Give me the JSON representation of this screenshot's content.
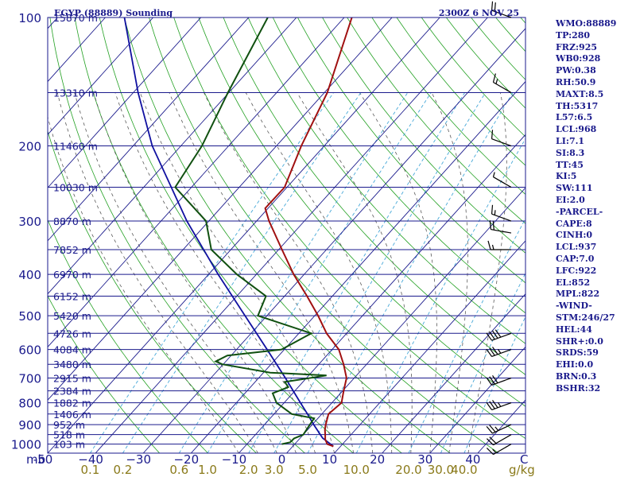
{
  "header": {
    "station": "EGYP (88889) Sounding",
    "time": "2300Z  6 NOV 25"
  },
  "indices": [
    "WMO:88889",
    "TP:280",
    "FRZ:925",
    "WB0:928",
    "PW:0.38",
    "RH:50.9",
    "MAXT:8.5",
    "TH:5317",
    "L57:6.5",
    "LCL:968",
    "LI:7.1",
    "SI:8.3",
    "TT:45",
    "KI:5",
    "SW:111",
    "EI:2.0",
    "-PARCEL-",
    "CAPE:8",
    "CINH:0",
    "LCL:937",
    "CAP:7.0",
    "LFC:922",
    "EL:852",
    "MPL:822",
    "-WIND-",
    "STM:246/27",
    "HEL:44",
    "SHR+:0.0",
    "SRDS:59",
    "EHI:0.0",
    "BRN:0.3",
    "BSHR:32"
  ],
  "chart_data": {
    "type": "skew-t log-p sounding",
    "title": "EGYP (88889) Sounding",
    "pressure_labels": [
      100,
      200,
      300,
      400,
      500,
      600,
      700,
      800,
      900,
      1000
    ],
    "unit_label": "mb",
    "temperature_ticks": [
      -50,
      -40,
      -30,
      -20,
      -10,
      0,
      10,
      20,
      30,
      40
    ],
    "temperature_tick_labels": [
      "-50",
      "−40",
      "−30",
      "−20",
      "−10",
      "0",
      "10",
      "20",
      "30",
      "40"
    ],
    "temperature_unit": "C",
    "temperature_range_c": [
      -50,
      50
    ],
    "pressure_range_mb": [
      100,
      1050
    ],
    "mixing_ratio_labels": [
      "0.1",
      "0.2",
      "0.6",
      "1.0",
      "2.0",
      "3.0",
      "5.0",
      "10.0",
      "20.0",
      "30.0",
      "40.0"
    ],
    "mixing_ratio_unit": "g/kg",
    "mixing_ratio_values": [
      0.1,
      0.2,
      0.6,
      1.0,
      2.0,
      3.0,
      5.0,
      10.0,
      20.0,
      30.0,
      40.0
    ],
    "height_levels": [
      {
        "p": 100,
        "label": "15870 m"
      },
      {
        "p": 150,
        "label": "13310 m"
      },
      {
        "p": 200,
        "label": "11460 m"
      },
      {
        "p": 250,
        "label": "10030 m"
      },
      {
        "p": 300,
        "label": "8870 m"
      },
      {
        "p": 350,
        "label": "7852 m"
      },
      {
        "p": 400,
        "label": "6970 m"
      },
      {
        "p": 450,
        "label": "6152 m"
      },
      {
        "p": 500,
        "label": "5420 m"
      },
      {
        "p": 550,
        "label": "4726 m"
      },
      {
        "p": 600,
        "label": "4084 m"
      },
      {
        "p": 650,
        "label": "3480 m"
      },
      {
        "p": 700,
        "label": "2915 m"
      },
      {
        "p": 750,
        "label": "2384 m"
      },
      {
        "p": 800,
        "label": "1882 m"
      },
      {
        "p": 850,
        "label": "1406 m"
      },
      {
        "p": 900,
        "label": "952 m"
      },
      {
        "p": 950,
        "label": "518 m"
      },
      {
        "p": 1000,
        "label": "103 m"
      }
    ],
    "temperature_profile": [
      {
        "p": 1012,
        "t": 8.5
      },
      {
        "p": 1000,
        "t": 6.8
      },
      {
        "p": 975,
        "t": 5.5
      },
      {
        "p": 950,
        "t": 4.6
      },
      {
        "p": 925,
        "t": 3.6
      },
      {
        "p": 900,
        "t": 2.8
      },
      {
        "p": 850,
        "t": 1.4
      },
      {
        "p": 800,
        "t": 2.0
      },
      {
        "p": 750,
        "t": 0.2
      },
      {
        "p": 700,
        "t": -1.6
      },
      {
        "p": 650,
        "t": -4.8
      },
      {
        "p": 600,
        "t": -8.6
      },
      {
        "p": 550,
        "t": -14.2
      },
      {
        "p": 500,
        "t": -19.3
      },
      {
        "p": 450,
        "t": -25.3
      },
      {
        "p": 400,
        "t": -32.2
      },
      {
        "p": 350,
        "t": -39.3
      },
      {
        "p": 300,
        "t": -47.4
      },
      {
        "p": 280,
        "t": -50.6
      },
      {
        "p": 250,
        "t": -50.5
      },
      {
        "p": 200,
        "t": -54.8
      },
      {
        "p": 150,
        "t": -59.4
      },
      {
        "p": 100,
        "t": -68.4
      }
    ],
    "dewpoint_profile": [
      {
        "p": 1000,
        "t": -2.7
      },
      {
        "p": 990,
        "t": -1.3
      },
      {
        "p": 970,
        "t": -1.2
      },
      {
        "p": 950,
        "t": 0.0
      },
      {
        "p": 900,
        "t": -0.5
      },
      {
        "p": 870,
        "t": -0.8
      },
      {
        "p": 850,
        "t": -6.3
      },
      {
        "p": 800,
        "t": -11.6
      },
      {
        "p": 760,
        "t": -14.2
      },
      {
        "p": 735,
        "t": -12.1
      },
      {
        "p": 715,
        "t": -13.8
      },
      {
        "p": 690,
        "t": -6.3
      },
      {
        "p": 680,
        "t": -18.6
      },
      {
        "p": 650,
        "t": -30.2
      },
      {
        "p": 640,
        "t": -32.1
      },
      {
        "p": 620,
        "t": -30.8
      },
      {
        "p": 600,
        "t": -20.6
      },
      {
        "p": 550,
        "t": -17.4
      },
      {
        "p": 500,
        "t": -31.9
      },
      {
        "p": 450,
        "t": -33.9
      },
      {
        "p": 400,
        "t": -44.1
      },
      {
        "p": 350,
        "t": -54.1
      },
      {
        "p": 300,
        "t": -60.6
      },
      {
        "p": 250,
        "t": -73.4
      },
      {
        "p": 200,
        "t": -75.6
      },
      {
        "p": 150,
        "t": -80.2
      },
      {
        "p": 100,
        "t": -86.0
      }
    ],
    "parcel_profile": [
      {
        "p": 1012,
        "t": 8.5
      },
      {
        "p": 968,
        "t": 4.7
      },
      {
        "p": 900,
        "t": 0.3
      },
      {
        "p": 850,
        "t": -3.0
      },
      {
        "p": 800,
        "t": -6.6
      },
      {
        "p": 700,
        "t": -14.4
      },
      {
        "p": 600,
        "t": -23.6
      },
      {
        "p": 500,
        "t": -34.6
      },
      {
        "p": 400,
        "t": -48.0
      },
      {
        "p": 300,
        "t": -64.6
      },
      {
        "p": 200,
        "t": -86.0
      },
      {
        "p": 150,
        "t": -99.0
      },
      {
        "p": 100,
        "t": -116.0
      }
    ],
    "wind_barbs": [
      {
        "p": 100,
        "dir": 290,
        "kt": 20
      },
      {
        "p": 150,
        "dir": 300,
        "kt": 15
      },
      {
        "p": 200,
        "dir": 290,
        "kt": 10
      },
      {
        "p": 250,
        "dir": 300,
        "kt": 5
      },
      {
        "p": 300,
        "dir": 290,
        "kt": 15
      },
      {
        "p": 320,
        "dir": 280,
        "kt": 20
      },
      {
        "p": 350,
        "dir": 270,
        "kt": 15
      },
      {
        "p": 550,
        "dir": 250,
        "kt": 40
      },
      {
        "p": 600,
        "dir": 250,
        "kt": 35
      },
      {
        "p": 700,
        "dir": 250,
        "kt": 30
      },
      {
        "p": 800,
        "dir": 250,
        "kt": 35
      },
      {
        "p": 900,
        "dir": 245,
        "kt": 25
      },
      {
        "p": 950,
        "dir": 240,
        "kt": 20
      },
      {
        "p": 1000,
        "dir": 240,
        "kt": 15
      }
    ],
    "colors": {
      "frame": "#1a1a8c",
      "isobar": "#1a1a8c",
      "isotherm": "#1a1a8c",
      "dry_adiabat": "#22a022",
      "moist_adiabat": "#5a5a5a",
      "mixing_ratio": "#46a8d8",
      "temperature": "#a01010",
      "dewpoint": "#105010",
      "parcel": "#1010a0",
      "mixing_label": "#8a7a1a"
    }
  }
}
